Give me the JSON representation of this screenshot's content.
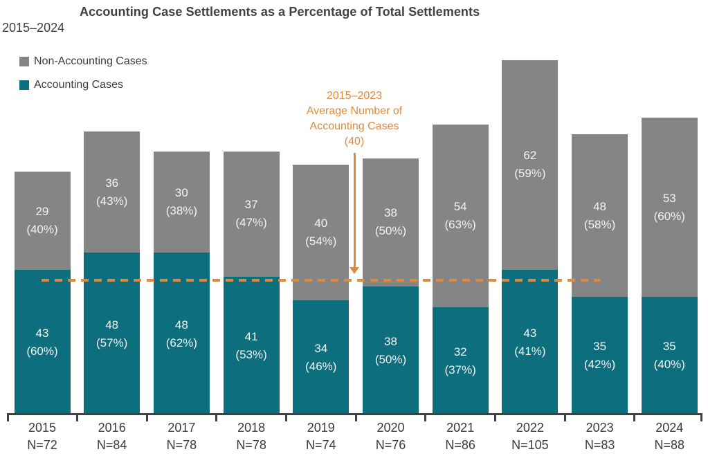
{
  "chart_data": {
    "type": "bar",
    "stacked": true,
    "title": "Accounting Case Settlements as a Percentage of Total Settlements",
    "subtitle": "2015–2024",
    "xlabel": "",
    "ylabel": "",
    "grid": false,
    "ylim": [
      0,
      105
    ],
    "categories": [
      "2015",
      "2016",
      "2017",
      "2018",
      "2019",
      "2020",
      "2021",
      "2022",
      "2023",
      "2024"
    ],
    "n_labels": [
      "N=72",
      "N=84",
      "N=78",
      "N=78",
      "N=74",
      "N=76",
      "N=86",
      "N=105",
      "N=83",
      "N=88"
    ],
    "totals": [
      72,
      84,
      78,
      78,
      74,
      76,
      86,
      105,
      83,
      88
    ],
    "series": [
      {
        "name": "Accounting Cases",
        "color": "#0d6f7d",
        "values": [
          43,
          48,
          48,
          41,
          34,
          38,
          32,
          43,
          35,
          35
        ],
        "pct_labels": [
          "(60%)",
          "(57%)",
          "(62%)",
          "(53%)",
          "(46%)",
          "(50%)",
          "(37%)",
          "(41%)",
          "(42%)",
          "(40%)"
        ]
      },
      {
        "name": "Non-Accounting Cases",
        "color": "#858585",
        "values": [
          29,
          36,
          30,
          37,
          40,
          38,
          54,
          62,
          48,
          53
        ],
        "pct_labels": [
          "(40%)",
          "(43%)",
          "(38%)",
          "(47%)",
          "(54%)",
          "(50%)",
          "(63%)",
          "(59%)",
          "(58%)",
          "(60%)"
        ]
      }
    ],
    "legend": {
      "position": "top-left",
      "items": [
        {
          "label": "Non-Accounting Cases",
          "color": "#858585"
        },
        {
          "label": "Accounting Cases",
          "color": "#0d6f7d"
        }
      ]
    },
    "average_line": {
      "value": 40,
      "style": "dashed",
      "color": "#db8a3e",
      "label_lines": [
        "2015–2023",
        "Average Number of",
        "Accounting Cases",
        "(40)"
      ]
    },
    "bar_label_color": "#f3f2f0",
    "text_color": "#414042"
  }
}
